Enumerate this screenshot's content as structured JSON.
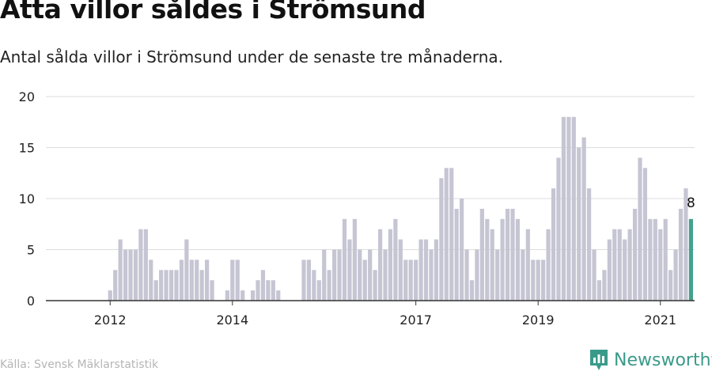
{
  "title": "Åtta villor såldes i Strömsund",
  "subtitle": "Antal sålda villor i Strömsund under de senaste tre månaderna.",
  "source": "Källa: Svensk Mäklarstatistik",
  "brand": "Newsworthy",
  "colors": {
    "bar": "#c6c5d3",
    "highlight": "#46a08e",
    "grid": "#dddddd",
    "axis": "#333333",
    "brand": "#3a9a8a"
  },
  "chart_data": {
    "type": "bar",
    "x_start": "2011-07",
    "x_end": "2021-06",
    "ylim": [
      0,
      20
    ],
    "yticks": [
      0,
      5,
      10,
      15,
      20
    ],
    "xticks": [
      {
        "label": "2012",
        "date": "2012-01"
      },
      {
        "label": "2014",
        "date": "2014-01"
      },
      {
        "label": "2017",
        "date": "2017-01"
      },
      {
        "label": "2019",
        "date": "2019-01"
      },
      {
        "label": "2021",
        "date": "2021-01"
      }
    ],
    "values": [
      0,
      0,
      0,
      0,
      0,
      0,
      1,
      3,
      6,
      5,
      5,
      5,
      7,
      7,
      4,
      2,
      3,
      3,
      3,
      3,
      4,
      6,
      4,
      4,
      3,
      4,
      2,
      0,
      0,
      1,
      4,
      4,
      1,
      0,
      1,
      2,
      3,
      2,
      2,
      1,
      0,
      0,
      0,
      0,
      4,
      4,
      3,
      2,
      5,
      3,
      5,
      5,
      8,
      6,
      8,
      5,
      4,
      5,
      3,
      7,
      5,
      7,
      8,
      6,
      4,
      4,
      4,
      6,
      6,
      5,
      6,
      12,
      13,
      13,
      9,
      10,
      5,
      2,
      5,
      9,
      8,
      7,
      5,
      8,
      9,
      9,
      8,
      5,
      7,
      4,
      4,
      4,
      7,
      11,
      14,
      18,
      18,
      18,
      15,
      16,
      11,
      5,
      2,
      3,
      6,
      7,
      7,
      6,
      7,
      9,
      14,
      13,
      8,
      8,
      7,
      8,
      3,
      5,
      9,
      11,
      8
    ],
    "highlight_label": "8",
    "xlabel": "",
    "ylabel": ""
  }
}
